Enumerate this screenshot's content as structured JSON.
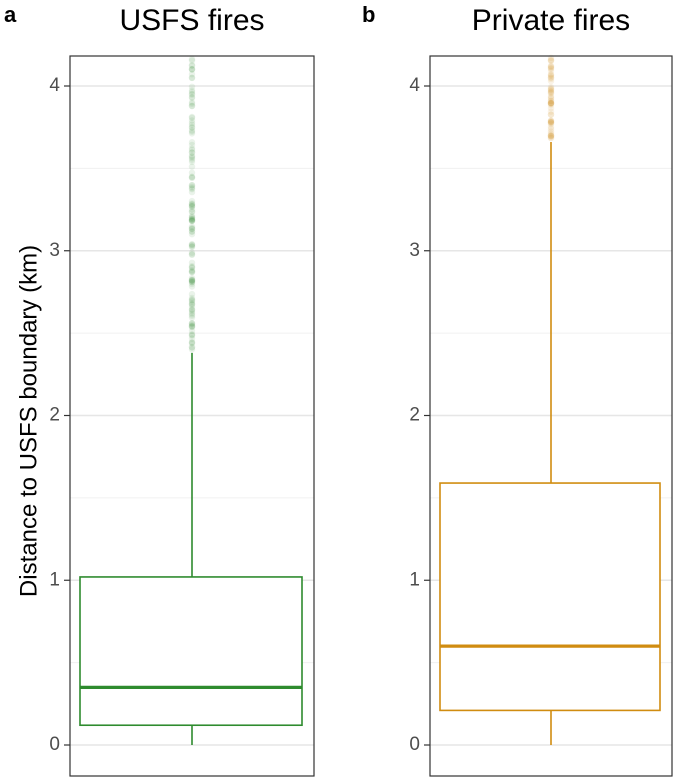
{
  "chart_data": {
    "type": "box",
    "ylabel": "Distance to USFS boundary (km)",
    "ylim": [
      -0.05,
      4.2
    ],
    "yticks": [
      0,
      1,
      2,
      3,
      4
    ],
    "grid": true,
    "panels": [
      {
        "letter": "a",
        "title": "USFS fires",
        "color": "#2e8b2e",
        "box": {
          "min": 0.0,
          "q1": 0.12,
          "median": 0.35,
          "q3": 1.02,
          "whisker_high": 2.38
        },
        "outliers_range": [
          2.4,
          4.2
        ]
      },
      {
        "letter": "b",
        "title": "Private fires",
        "color": "#d08c10",
        "box": {
          "min": 0.0,
          "q1": 0.21,
          "median": 0.6,
          "q3": 1.59,
          "whisker_high": 3.66
        },
        "outliers_range": [
          3.68,
          4.2
        ]
      }
    ]
  }
}
